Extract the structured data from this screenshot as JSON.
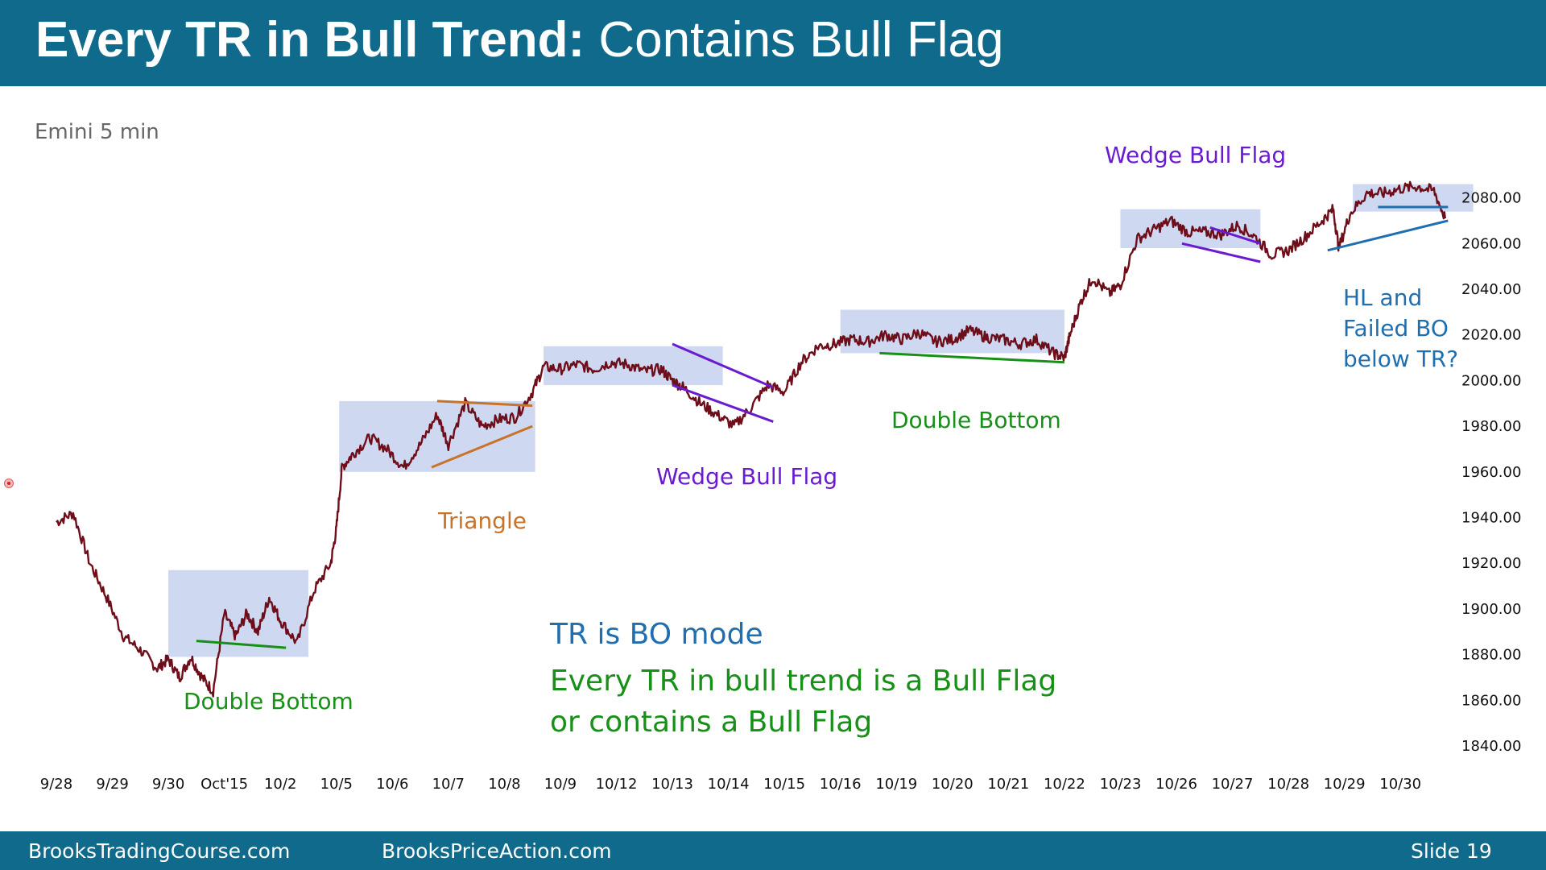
{
  "slide": {
    "title_bold": "Every TR in Bull Trend:",
    "title_rest": "Contains Bull Flag",
    "footer_left": "BrooksTradingCourse.com",
    "footer_center": "BrooksPriceAction.com",
    "footer_right": "Slide  19"
  },
  "colors": {
    "header_bg": "#0f6a8b",
    "price": "#6e0e1a",
    "range_box": "#c9d4ee",
    "green": "#179017",
    "orange": "#c8732a",
    "purple": "#6a1bd0",
    "blue": "#1f6eb0",
    "gray": "#666666"
  },
  "chart_data": {
    "type": "line",
    "title": "Emini 5 min",
    "y_range": [
      1840,
      2080
    ],
    "y_ticks": [
      "2080.00",
      "2060.00",
      "2040.00",
      "2020.00",
      "2000.00",
      "1980.00",
      "1960.00",
      "1940.00",
      "1920.00",
      "1900.00",
      "1880.00",
      "1860.00",
      "1840.00"
    ],
    "x_labels": [
      "9/28",
      "9/29",
      "9/30",
      "Oct'15",
      "10/2",
      "10/5",
      "10/6",
      "10/7",
      "10/8",
      "10/9",
      "10/12",
      "10/13",
      "10/14",
      "10/15",
      "10/16",
      "10/19",
      "10/20",
      "10/21",
      "10/22",
      "10/23",
      "10/26",
      "10/27",
      "10/28",
      "10/29",
      "10/30"
    ],
    "series": [
      {
        "x": [
          0,
          0.3,
          0.6,
          0.9,
          1.2,
          1.5,
          1.8,
          2.0,
          2.2,
          2.4,
          2.6,
          2.8,
          3.0,
          3.2,
          3.4,
          3.6,
          3.8,
          4.0,
          4.3,
          4.6,
          4.9,
          5.0,
          5.1,
          5.3,
          5.6,
          5.9,
          6.2,
          6.5,
          6.8,
          7.0,
          7.3,
          7.6,
          7.9,
          8.2,
          8.5,
          8.7,
          9.0,
          9.3,
          9.6,
          9.9,
          10.2,
          10.5,
          10.8,
          11.0,
          11.2,
          11.5,
          11.8,
          12.1,
          12.4,
          12.7,
          13.0,
          13.3,
          13.6,
          13.9,
          14.2,
          14.5,
          14.8,
          15.1,
          15.4,
          15.7,
          16.0,
          16.3,
          16.6,
          16.9,
          17.2,
          17.5,
          17.8,
          18.0,
          18.1,
          18.3,
          18.5,
          18.8,
          19.0,
          19.3,
          19.6,
          19.9,
          20.2,
          20.5,
          20.8,
          21.1,
          21.4,
          21.7,
          22.0,
          22.3,
          22.6,
          22.8,
          22.9,
          23.1,
          23.4,
          23.7,
          24.0,
          24.3,
          24.6,
          24.8
        ],
        "y": [
          1938,
          1942,
          1920,
          1905,
          1888,
          1882,
          1874,
          1878,
          1870,
          1879,
          1870,
          1864,
          1898,
          1888,
          1898,
          1890,
          1905,
          1895,
          1885,
          1908,
          1920,
          1935,
          1962,
          1968,
          1975,
          1970,
          1962,
          1972,
          1985,
          1972,
          1990,
          1980,
          1983,
          1984,
          1995,
          2006,
          2005,
          2007,
          2005,
          2008,
          2007,
          2004,
          2005,
          2000,
          1997,
          1990,
          1985,
          1980,
          1988,
          1998,
          1995,
          2008,
          2015,
          2016,
          2018,
          2017,
          2020,
          2018,
          2021,
          2017,
          2018,
          2022,
          2019,
          2018,
          2016,
          2018,
          2012,
          2010,
          2020,
          2035,
          2045,
          2038,
          2042,
          2062,
          2066,
          2070,
          2065,
          2065,
          2064,
          2068,
          2063,
          2055,
          2057,
          2063,
          2070,
          2075,
          2058,
          2073,
          2082,
          2082,
          2084,
          2085,
          2083,
          2071
        ]
      }
    ],
    "trading_ranges": [
      {
        "x": [
          2.0,
          4.5
        ],
        "y": [
          1879,
          1917
        ]
      },
      {
        "x": [
          5.05,
          8.55
        ],
        "y": [
          1960,
          1991
        ]
      },
      {
        "x": [
          8.7,
          11.9
        ],
        "y": [
          1998,
          2015
        ]
      },
      {
        "x": [
          14.0,
          18.0
        ],
        "y": [
          2012,
          2031
        ]
      },
      {
        "x": [
          19.0,
          21.5
        ],
        "y": [
          2058,
          2075
        ]
      },
      {
        "x": [
          23.15,
          25.3
        ],
        "y": [
          2074,
          2086
        ]
      }
    ],
    "trend_lines": [
      {
        "color": "green",
        "x": [
          2.5,
          4.1
        ],
        "y": [
          1886,
          1883
        ]
      },
      {
        "color": "orange",
        "x": [
          6.7,
          8.5
        ],
        "y": [
          1962,
          1980
        ]
      },
      {
        "color": "orange",
        "x": [
          6.8,
          8.5
        ],
        "y": [
          1991,
          1989
        ]
      },
      {
        "color": "purple",
        "x": [
          11.0,
          12.8
        ],
        "y": [
          2016,
          1997
        ]
      },
      {
        "color": "purple",
        "x": [
          11.0,
          12.8
        ],
        "y": [
          1998,
          1982
        ]
      },
      {
        "color": "green",
        "x": [
          14.7,
          18.0
        ],
        "y": [
          2012,
          2008
        ]
      },
      {
        "color": "purple",
        "x": [
          20.1,
          21.5
        ],
        "y": [
          2060,
          2052
        ]
      },
      {
        "color": "purple",
        "x": [
          20.6,
          21.5
        ],
        "y": [
          2067,
          2060
        ]
      },
      {
        "color": "blue",
        "x": [
          23.6,
          24.85
        ],
        "y": [
          2076,
          2076
        ]
      },
      {
        "color": "blue",
        "x": [
          22.7,
          24.85
        ],
        "y": [
          2057,
          2070
        ]
      }
    ],
    "annotations": [
      {
        "text": "Double Bottom",
        "color": "green"
      },
      {
        "text": "Triangle",
        "color": "orange"
      },
      {
        "text": "Wedge Bull Flag",
        "color": "purple"
      },
      {
        "text": "Double Bottom",
        "color": "green"
      },
      {
        "text": "Wedge Bull Flag",
        "color": "purple"
      },
      {
        "text": "HL and",
        "color": "blue"
      },
      {
        "text": "Failed BO",
        "color": "blue"
      },
      {
        "text": "below TR?",
        "color": "blue"
      },
      {
        "text": "TR is BO mode",
        "color": "blue"
      },
      {
        "text": "Every TR in bull trend is a Bull Flag",
        "color": "green"
      },
      {
        "text": "or contains a Bull Flag",
        "color": "green"
      }
    ]
  }
}
